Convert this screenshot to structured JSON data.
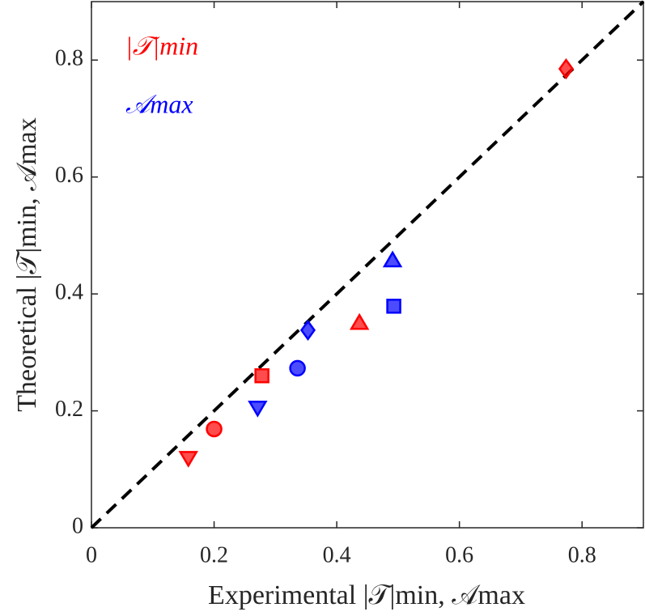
{
  "chart_data": {
    "type": "scatter",
    "x_label": "Experimental |𝒯|min, 𝒜max",
    "y_label": "Theoretical |𝒯|min, 𝒜max",
    "xlim": [
      0,
      0.9
    ],
    "ylim": [
      0,
      0.9
    ],
    "xticks": [
      0,
      0.2,
      0.4,
      0.6,
      0.8
    ],
    "yticks": [
      0,
      0.2,
      0.4,
      0.6,
      0.8
    ],
    "diagonal": true,
    "series": [
      {
        "name": "|𝒯|min",
        "color": "#ff0000",
        "markers": [
          "v",
          "o",
          "s",
          "^",
          "D"
        ],
        "x": [
          0.158,
          0.2,
          0.278,
          0.437,
          0.774
        ],
        "values": [
          0.12,
          0.169,
          0.26,
          0.35,
          0.785
        ]
      },
      {
        "name": "𝒜max",
        "color": "#0000ff",
        "markers": [
          "v",
          "o",
          "D",
          "^",
          "s"
        ],
        "x": [
          0.271,
          0.336,
          0.353,
          0.491,
          0.493
        ],
        "values": [
          0.206,
          0.273,
          0.338,
          0.457,
          0.379
        ]
      }
    ]
  }
}
